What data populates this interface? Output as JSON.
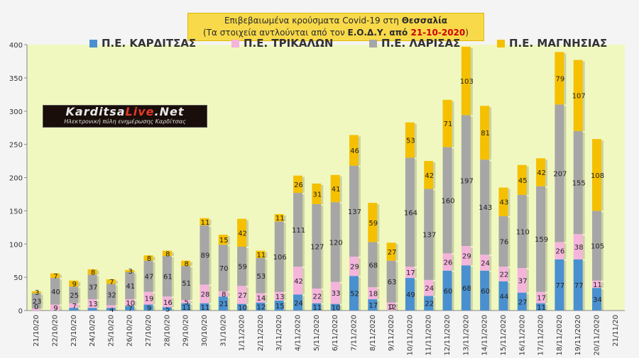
{
  "title": {
    "line1_prefix": "Επιβεβαιωμένα κρούσματα Covid-19 στη ",
    "line1_bold": "Θεσσαλία",
    "line2_prefix": "(Τα στοιχεία αντλούνται από τον ",
    "line2_bold": "Ε.Ο.Δ.Υ. από ",
    "line2_date": "21-10-2020",
    "line2_suffix": ")"
  },
  "logo": {
    "name_part1": "Karditsa",
    "name_part2": "Live",
    "name_part3": ".Net",
    "tagline": "Ηλεκτρονική πύλη ενημέρωσης Καρδίτσας"
  },
  "colors": {
    "karditsa": "#4a90d0",
    "trikala": "#f4b4dc",
    "larisa": "#a6a6a6",
    "magnisia": "#f5c000",
    "plot_bg": "#f0f8c0"
  },
  "chart_data": {
    "type": "bar",
    "stacked": true,
    "categories": [
      "21/10/20",
      "22/10/20",
      "23/10/20",
      "24/10/20",
      "25/10/20",
      "26/10/20",
      "27/10/20",
      "28/10/20",
      "29/10/20",
      "30/10/20",
      "31/10/20",
      "1/11/2020",
      "2/11/2020",
      "3/11/2020",
      "4/11/2020",
      "5/11/2020",
      "6/11/2020",
      "7/11/2020",
      "8/11/2020",
      "9/11/2020",
      "10/11/2020",
      "11/11/2020",
      "12/11/2020",
      "13/11/2020",
      "14/11/2020",
      "15/11/2020",
      "16/11/2020",
      "17/11/2020",
      "18/11/2020",
      "19/11/2020",
      "20/11/2020",
      "21/11/20"
    ],
    "series": [
      {
        "name": "Π.Ε. ΚΑΡΔΙΤΣΑΣ",
        "values": [
          0,
          0,
          4,
          4,
          4,
          7,
          9,
          5,
          11,
          11,
          21,
          10,
          12,
          15,
          24,
          11,
          10,
          52,
          17,
          0,
          49,
          22,
          60,
          68,
          60,
          44,
          27,
          11,
          77,
          77,
          34,
          0
        ]
      },
      {
        "name": "Π.Ε. ΤΡΙΚΑΛΩΝ",
        "values": [
          3,
          9,
          7,
          13,
          4,
          10,
          19,
          16,
          5,
          28,
          8,
          27,
          14,
          13,
          42,
          22,
          33,
          29,
          18,
          12,
          17,
          24,
          26,
          29,
          24,
          22,
          37,
          17,
          26,
          38,
          11,
          0
        ]
      },
      {
        "name": "Π.Ε. ΛΑΡΙΣΑΣ",
        "values": [
          23,
          40,
          25,
          37,
          32,
          41,
          47,
          61,
          51,
          89,
          70,
          59,
          53,
          106,
          111,
          127,
          120,
          137,
          68,
          63,
          164,
          137,
          160,
          197,
          143,
          76,
          110,
          159,
          207,
          155,
          105,
          0
        ]
      },
      {
        "name": "Π.Ε. ΜΑΓΝΗΣΙΑΣ",
        "values": [
          3,
          7,
          9,
          8,
          7,
          3,
          8,
          8,
          8,
          11,
          15,
          42,
          11,
          11,
          26,
          31,
          41,
          46,
          59,
          27,
          53,
          42,
          71,
          103,
          81,
          43,
          45,
          42,
          79,
          107,
          108,
          0
        ]
      }
    ],
    "labels": {
      "karditsa": [
        "0",
        "",
        "",
        "",
        "4",
        "7",
        "9",
        "5",
        "11",
        "11",
        "21",
        "10",
        "12",
        "15",
        "24",
        "11",
        "10",
        "52",
        "17",
        "0",
        "49",
        "22",
        "60",
        "68",
        "60",
        "44",
        "27",
        "11",
        "77",
        "77",
        "34",
        ""
      ],
      "trikala": [
        "",
        "9",
        "7",
        "13",
        "",
        "10",
        "19",
        "16",
        "5",
        "28",
        "8",
        "27",
        "14",
        "13",
        "42",
        "22",
        "33",
        "29",
        "18",
        "12",
        "17",
        "24",
        "26",
        "29",
        "24",
        "22",
        "37",
        "17",
        "26",
        "38",
        "11",
        ""
      ],
      "larisa": [
        "23",
        "40",
        "25",
        "37",
        "32",
        "41",
        "47",
        "61",
        "51",
        "89",
        "70",
        "59",
        "53",
        "106",
        "111",
        "127",
        "120",
        "137",
        "68",
        "63",
        "164",
        "137",
        "160",
        "197",
        "143",
        "76",
        "110",
        "159",
        "207",
        "155",
        "105",
        ""
      ],
      "magnisia": [
        "3",
        "7",
        "9",
        "8",
        "7",
        "3",
        "8",
        "8",
        "8",
        "11",
        "15",
        "42",
        "11",
        "11",
        "26",
        "31",
        "41",
        "46",
        "59",
        "27",
        "53",
        "42",
        "71",
        "103",
        "81",
        "43",
        "45",
        "42",
        "79",
        "107",
        "108",
        ""
      ]
    },
    "bottom_labels": [
      "0",
      "1",
      "4",
      "4",
      "4",
      "",
      ""
    ],
    "ylim": [
      0,
      400
    ],
    "yticks": [
      0,
      50,
      100,
      150,
      200,
      250,
      300,
      350,
      400
    ],
    "grid": false,
    "legend_placement": "top"
  }
}
